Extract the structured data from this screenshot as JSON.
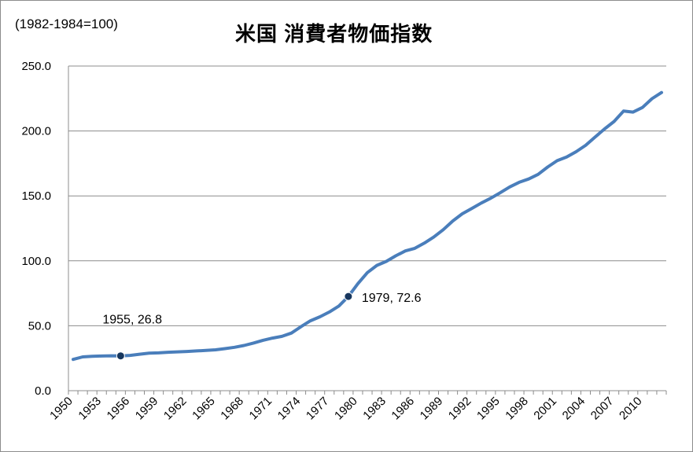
{
  "chart_data": {
    "type": "line",
    "title": "米国 消費者物価指数",
    "subtitle": "(1982-1984=100)",
    "xlabel": "",
    "ylabel": "",
    "ylim": [
      0,
      250
    ],
    "y_ticks": [
      "0.0",
      "50.0",
      "100.0",
      "150.0",
      "200.0",
      "250.0"
    ],
    "x_tick_labels": [
      "1950",
      "1953",
      "1956",
      "1959",
      "1962",
      "1965",
      "1968",
      "1971",
      "1974",
      "1977",
      "1980",
      "1983",
      "1986",
      "1989",
      "1992",
      "1995",
      "1998",
      "2001",
      "2004",
      "2007",
      "2010"
    ],
    "grid": "horizontal",
    "legend": "none",
    "line_color": "#4a7ebb",
    "marker_color": "#17375e",
    "x": [
      1950,
      1951,
      1952,
      1953,
      1954,
      1955,
      1956,
      1957,
      1958,
      1959,
      1960,
      1961,
      1962,
      1963,
      1964,
      1965,
      1966,
      1967,
      1968,
      1969,
      1970,
      1971,
      1972,
      1973,
      1974,
      1975,
      1976,
      1977,
      1978,
      1979,
      1980,
      1981,
      1982,
      1983,
      1984,
      1985,
      1986,
      1987,
      1988,
      1989,
      1990,
      1991,
      1992,
      1993,
      1994,
      1995,
      1996,
      1997,
      1998,
      1999,
      2000,
      2001,
      2002,
      2003,
      2004,
      2005,
      2006,
      2007,
      2008,
      2009,
      2010,
      2011,
      2012
    ],
    "series": [
      {
        "values": [
          24.1,
          26.0,
          26.5,
          26.7,
          26.9,
          26.8,
          27.2,
          28.1,
          28.9,
          29.1,
          29.6,
          29.9,
          30.2,
          30.6,
          31.0,
          31.5,
          32.4,
          33.4,
          34.8,
          36.7,
          38.8,
          40.5,
          41.8,
          44.4,
          49.3,
          53.8,
          56.9,
          60.6,
          65.2,
          72.6,
          82.4,
          90.9,
          96.5,
          99.6,
          103.9,
          107.6,
          109.6,
          113.6,
          118.3,
          124.0,
          130.7,
          136.2,
          140.3,
          144.5,
          148.2,
          152.4,
          156.9,
          160.5,
          163.0,
          166.6,
          172.2,
          177.1,
          179.9,
          184.0,
          188.9,
          195.3,
          201.6,
          207.3,
          215.3,
          214.5,
          218.1,
          224.9,
          229.6
        ]
      }
    ],
    "annotations": [
      {
        "x": 1955,
        "y": 26.8,
        "label": "1955, 26.8"
      },
      {
        "x": 1979,
        "y": 72.6,
        "label": "1979, 72.6"
      }
    ]
  }
}
